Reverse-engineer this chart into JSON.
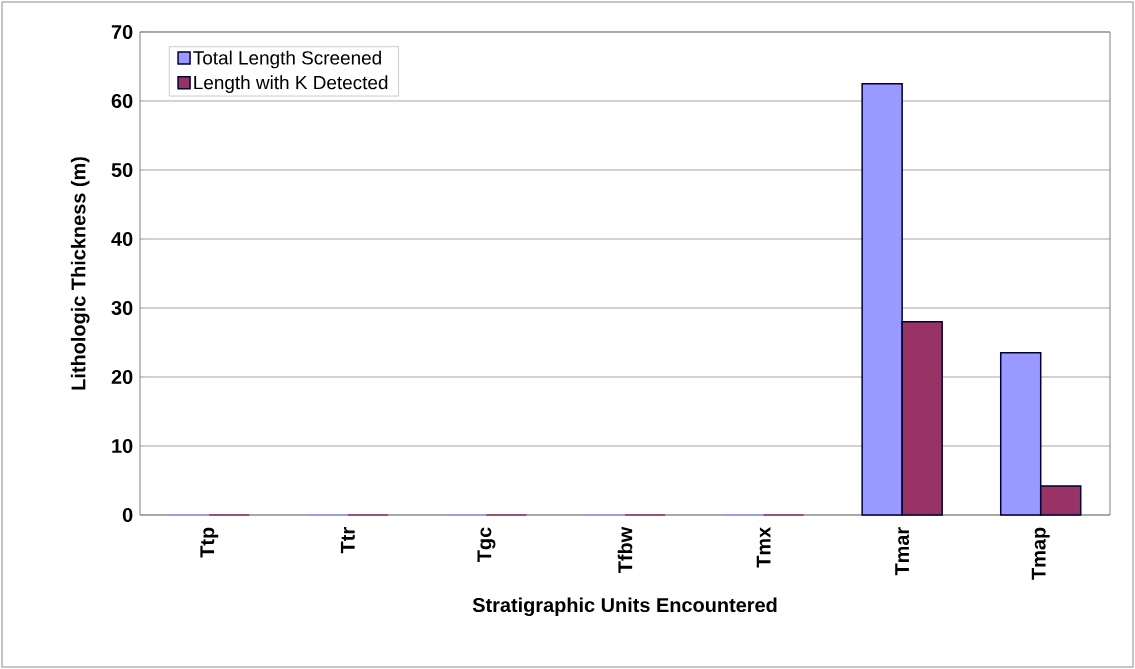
{
  "chart_data": {
    "type": "bar",
    "xlabel": "Stratigraphic Units Encountered",
    "ylabel": "Lithologic Thickness (m)",
    "categories": [
      "Ttp",
      "Ttr",
      "Tgc",
      "Tfbw",
      "Tmx",
      "Tmar",
      "Tmap"
    ],
    "series": [
      {
        "name": "Total Length Screened",
        "color": "#9999ff",
        "values": [
          0,
          0,
          0,
          0,
          0,
          62.5,
          23.5
        ]
      },
      {
        "name": "Length with K Detected",
        "color": "#993366",
        "values": [
          0,
          0,
          0,
          0,
          0,
          28,
          4.2
        ]
      }
    ],
    "ylim": [
      0,
      70
    ],
    "yticks": [
      0,
      10,
      20,
      30,
      40,
      50,
      60,
      70
    ],
    "grid": "y",
    "legend": "top left"
  }
}
